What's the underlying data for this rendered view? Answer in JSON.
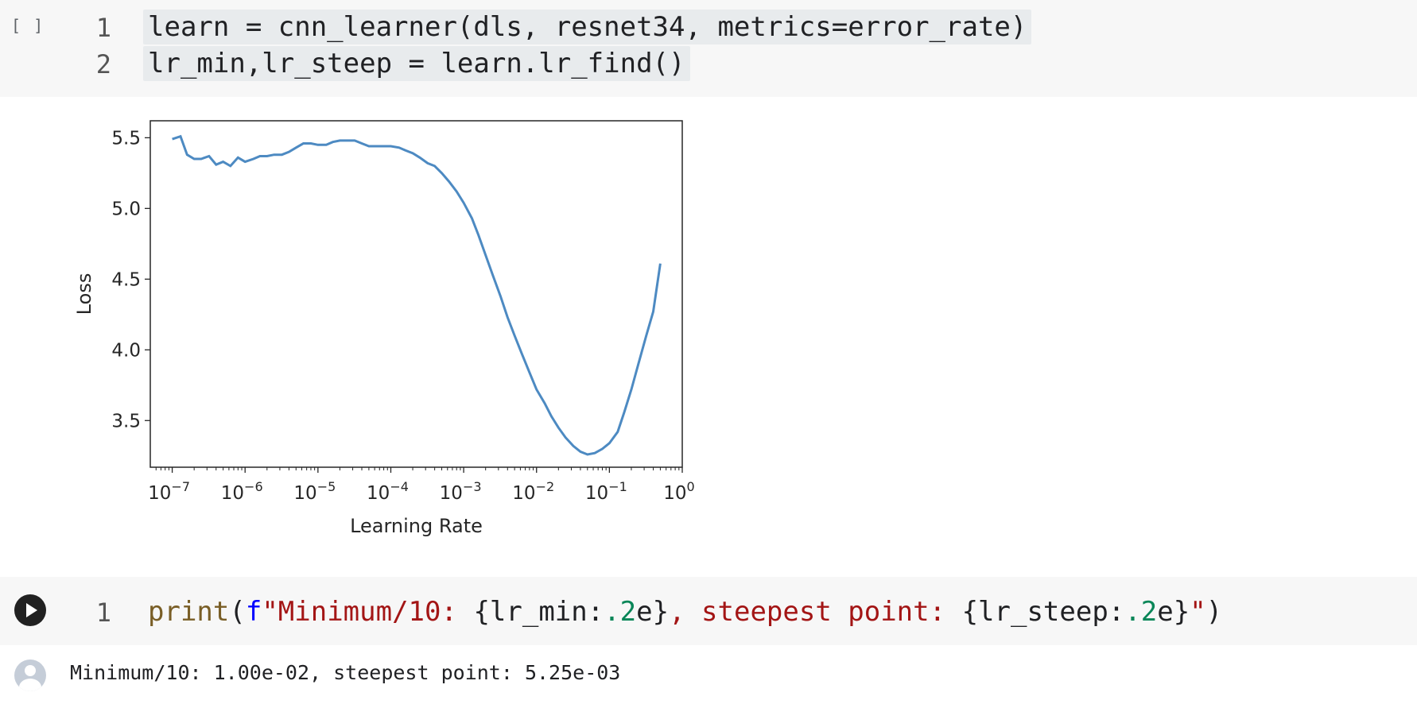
{
  "cell1": {
    "run_indicator": "[ ]",
    "lines": [
      {
        "num": "1",
        "code": "learn = cnn_learner(dls, resnet34, metrics=error_rate)"
      },
      {
        "num": "2",
        "code": "lr_min,lr_steep = learn.lr_find()"
      }
    ]
  },
  "cell2": {
    "lines": [
      {
        "num": "1",
        "tokens": {
          "fn": "print",
          "open": "(",
          "prefix": "f",
          "str1": "\"Minimum/10: ",
          "expr1a": "{lr_min:",
          "num1": ".2",
          "expr1b": "e}",
          "str2": ", steepest point: ",
          "expr2a": "{lr_steep:",
          "num2": ".2",
          "expr2b": "e}",
          "str3": "\"",
          "close": ")"
        }
      }
    ]
  },
  "output": {
    "text": "Minimum/10: 1.00e-02, steepest point: 5.25e-03"
  },
  "colors": {
    "line": "#4d8ac2",
    "cell_bg": "#f7f7f7",
    "highlight": "#e8ebed"
  },
  "chart_data": {
    "type": "line",
    "xlabel": "Learning Rate",
    "ylabel": "Loss",
    "x_scale": "log",
    "x_ticks": [
      "-7",
      "-6",
      "-5",
      "-4",
      "-3",
      "-2",
      "-1",
      "0"
    ],
    "x_tick_base": "10",
    "y_ticks": [
      "3.5",
      "4.0",
      "4.5",
      "5.0",
      "5.5"
    ],
    "xlim": [
      5e-08,
      1.0
    ],
    "ylim": [
      3.17,
      5.62
    ],
    "grid": false,
    "series": [
      {
        "x": [
          1e-07,
          1.3e-07,
          1.6e-07,
          2e-07,
          2.5e-07,
          3.2e-07,
          4e-07,
          5e-07,
          6.3e-07,
          8e-07,
          1e-06,
          1.3e-06,
          1.6e-06,
          2e-06,
          2.5e-06,
          3.2e-06,
          4e-06,
          5e-06,
          6.3e-06,
          8e-06,
          1e-05,
          1.3e-05,
          1.6e-05,
          2e-05,
          2.5e-05,
          3.2e-05,
          4e-05,
          5e-05,
          6.3e-05,
          8e-05,
          0.0001,
          0.00013,
          0.00016,
          0.0002,
          0.00025,
          0.00032,
          0.0004,
          0.0005,
          0.00063,
          0.0008,
          0.001,
          0.0013,
          0.0016,
          0.002,
          0.0025,
          0.0032,
          0.004,
          0.005,
          0.0063,
          0.008,
          0.01,
          0.013,
          0.016,
          0.02,
          0.025,
          0.032,
          0.04,
          0.05,
          0.063,
          0.08,
          0.1,
          0.13,
          0.16,
          0.2,
          0.25,
          0.32,
          0.4,
          0.5
        ],
        "y": [
          5.49,
          5.51,
          5.38,
          5.35,
          5.35,
          5.37,
          5.31,
          5.33,
          5.3,
          5.36,
          5.33,
          5.35,
          5.37,
          5.37,
          5.38,
          5.38,
          5.4,
          5.43,
          5.46,
          5.46,
          5.45,
          5.45,
          5.47,
          5.48,
          5.48,
          5.48,
          5.46,
          5.44,
          5.44,
          5.44,
          5.44,
          5.43,
          5.41,
          5.39,
          5.36,
          5.32,
          5.3,
          5.25,
          5.19,
          5.12,
          5.04,
          4.93,
          4.81,
          4.67,
          4.53,
          4.38,
          4.23,
          4.1,
          3.97,
          3.84,
          3.72,
          3.62,
          3.53,
          3.45,
          3.38,
          3.32,
          3.28,
          3.26,
          3.27,
          3.3,
          3.34,
          3.42,
          3.56,
          3.72,
          3.9,
          4.1,
          4.27,
          4.61
        ]
      }
    ]
  }
}
